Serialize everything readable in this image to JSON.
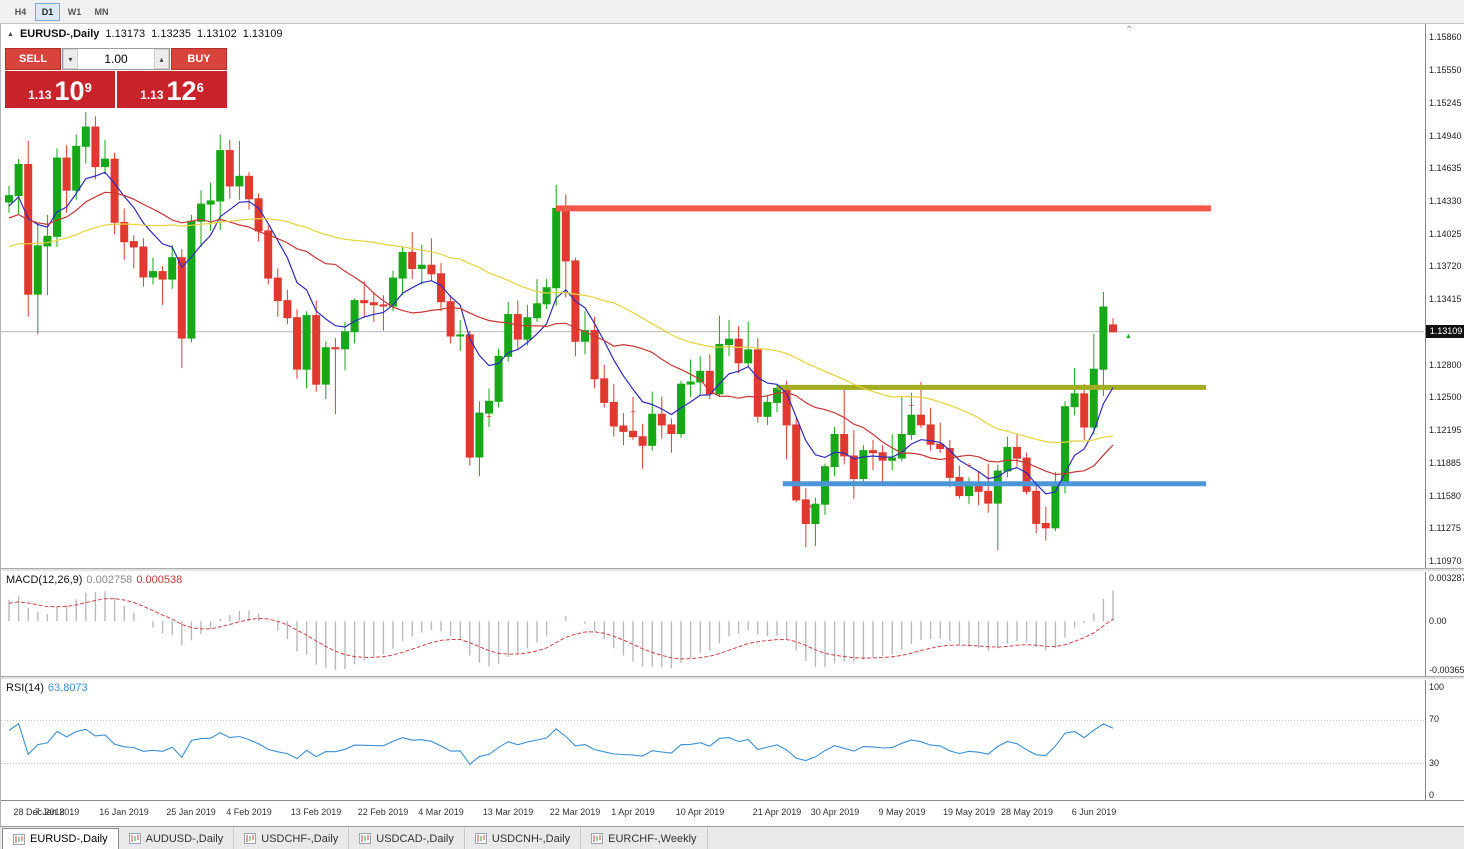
{
  "toolbar": {
    "timeframes": [
      {
        "label": "H4",
        "active": false
      },
      {
        "label": "D1",
        "active": true
      },
      {
        "label": "W1",
        "active": false
      },
      {
        "label": "MN",
        "active": false
      }
    ]
  },
  "icons": {
    "symbol_marker": "▲",
    "scroll_top": "⌃",
    "spin_up": "▴",
    "spin_down": "▾"
  },
  "chart": {
    "header": {
      "symbol": "EURUSD-,Daily",
      "open": "1.13173",
      "high": "1.13235",
      "low": "1.13102",
      "close": "1.13109"
    },
    "trade_panel": {
      "sell_label": "SELL",
      "buy_label": "BUY",
      "volume": "1.00",
      "sell_price": {
        "small": "1.13",
        "big": "10",
        "sup": "9"
      },
      "buy_price": {
        "small": "1.13",
        "big": "12",
        "sup": "6"
      }
    },
    "current_price": "1.13109",
    "current_price_value": 1.13109,
    "price_axis": [
      "1.15860",
      "1.15550",
      "1.15245",
      "1.14940",
      "1.14635",
      "1.14330",
      "1.14025",
      "1.13720",
      "1.13415",
      "1.12800",
      "1.12500",
      "1.12195",
      "1.11885",
      "1.11580",
      "1.11275",
      "1.10970"
    ],
    "up_color": "#17a817",
    "down_color": "#e03a30",
    "levels": [
      {
        "name": "resistance-line-red",
        "price": 1.1426,
        "color": "#f4564a",
        "width": 6,
        "from_index": 57,
        "to_index": 125.2
      },
      {
        "name": "breakout-line-olive",
        "price": 1.1259,
        "color": "#a2ad1f",
        "width": 5,
        "from_index": 80,
        "to_index": 124.7
      },
      {
        "name": "support-line-blue",
        "price": 1.1169,
        "color": "#4c96d8",
        "width": 5,
        "from_index": 80.6,
        "to_index": 124.7
      }
    ],
    "ma": [
      {
        "period": 8,
        "type": "ema",
        "color": "#2c2cbe"
      },
      {
        "period": 16,
        "type": "sma",
        "color": "#c93636"
      },
      {
        "period": 45,
        "type": "sma",
        "color": "#e7d23c"
      }
    ],
    "prehistory_closes": [
      1.133,
      1.1345,
      1.136,
      1.134,
      1.1322,
      1.131,
      1.1335,
      1.135,
      1.1365,
      1.138,
      1.137,
      1.1355,
      1.134,
      1.133,
      1.1345,
      1.136,
      1.1375,
      1.139,
      1.1405,
      1.1395,
      1.138,
      1.1365,
      1.135,
      1.136,
      1.1375,
      1.139,
      1.14,
      1.141,
      1.142,
      1.141,
      1.1395,
      1.138,
      1.137,
      1.1385,
      1.14,
      1.1415,
      1.1425,
      1.1435,
      1.1425,
      1.141,
      1.1395,
      1.1385,
      1.1375,
      1.139,
      1.1405,
      1.142,
      1.1435,
      1.1445,
      1.144,
      1.1435
    ],
    "candles": [
      [
        1.1432,
        1.1447,
        1.1422,
        1.1438
      ],
      [
        1.1438,
        1.1472,
        1.1421,
        1.1467
      ],
      [
        1.1467,
        1.1489,
        1.1325,
        1.1346
      ],
      [
        1.1346,
        1.1412,
        1.1309,
        1.1391
      ],
      [
        1.1391,
        1.142,
        1.1345,
        1.14
      ],
      [
        1.14,
        1.1482,
        1.139,
        1.1473
      ],
      [
        1.1473,
        1.1485,
        1.1422,
        1.1443
      ],
      [
        1.1443,
        1.1495,
        1.1434,
        1.1484
      ],
      [
        1.1484,
        1.1516,
        1.1468,
        1.1502
      ],
      [
        1.1502,
        1.1512,
        1.1453,
        1.1465
      ],
      [
        1.1465,
        1.149,
        1.1458,
        1.1472
      ],
      [
        1.1472,
        1.1478,
        1.1402,
        1.1413
      ],
      [
        1.1413,
        1.1426,
        1.1378,
        1.1395
      ],
      [
        1.1395,
        1.1401,
        1.137,
        1.139
      ],
      [
        1.139,
        1.1398,
        1.1353,
        1.1362
      ],
      [
        1.1362,
        1.138,
        1.1355,
        1.1367
      ],
      [
        1.1367,
        1.1372,
        1.1336,
        1.136
      ],
      [
        1.136,
        1.1392,
        1.1351,
        1.138
      ],
      [
        1.138,
        1.1388,
        1.1277,
        1.1305
      ],
      [
        1.1305,
        1.142,
        1.1301,
        1.1414
      ],
      [
        1.1414,
        1.1443,
        1.139,
        1.143
      ],
      [
        1.143,
        1.145,
        1.1405,
        1.1433
      ],
      [
        1.1433,
        1.1495,
        1.1406,
        1.148
      ],
      [
        1.148,
        1.149,
        1.1435,
        1.1447
      ],
      [
        1.1447,
        1.1489,
        1.1434,
        1.1456
      ],
      [
        1.1456,
        1.146,
        1.1425,
        1.1435
      ],
      [
        1.1435,
        1.144,
        1.1395,
        1.1405
      ],
      [
        1.1405,
        1.141,
        1.1355,
        1.1361
      ],
      [
        1.1361,
        1.137,
        1.1325,
        1.134
      ],
      [
        1.134,
        1.135,
        1.1318,
        1.1324
      ],
      [
        1.1324,
        1.1332,
        1.1267,
        1.1276
      ],
      [
        1.1276,
        1.133,
        1.1258,
        1.1326
      ],
      [
        1.1326,
        1.134,
        1.1255,
        1.1262
      ],
      [
        1.1262,
        1.1302,
        1.1248,
        1.1296
      ],
      [
        1.1296,
        1.1305,
        1.1234,
        1.1295
      ],
      [
        1.1295,
        1.132,
        1.1275,
        1.1311
      ],
      [
        1.1311,
        1.1342,
        1.13,
        1.134
      ],
      [
        1.134,
        1.1358,
        1.1324,
        1.1338
      ],
      [
        1.1338,
        1.1348,
        1.132,
        1.1336
      ],
      [
        1.1336,
        1.1345,
        1.1312,
        1.1335
      ],
      [
        1.1335,
        1.1368,
        1.133,
        1.1361
      ],
      [
        1.1361,
        1.139,
        1.1345,
        1.1385
      ],
      [
        1.1385,
        1.1404,
        1.136,
        1.137
      ],
      [
        1.137,
        1.1392,
        1.1355,
        1.1373
      ],
      [
        1.1373,
        1.1398,
        1.1358,
        1.1365
      ],
      [
        1.1365,
        1.1375,
        1.133,
        1.1339
      ],
      [
        1.1339,
        1.1345,
        1.13,
        1.1307
      ],
      [
        1.1307,
        1.1322,
        1.1293,
        1.1308
      ],
      [
        1.1308,
        1.1312,
        1.1186,
        1.1194
      ],
      [
        1.1194,
        1.1246,
        1.1176,
        1.1235
      ],
      [
        1.1235,
        1.1258,
        1.1222,
        1.1246
      ],
      [
        1.1246,
        1.1295,
        1.124,
        1.1288
      ],
      [
        1.1288,
        1.1339,
        1.1283,
        1.1327
      ],
      [
        1.1327,
        1.134,
        1.1295,
        1.1304
      ],
      [
        1.1304,
        1.1336,
        1.1298,
        1.1324
      ],
      [
        1.1324,
        1.136,
        1.132,
        1.1337
      ],
      [
        1.1337,
        1.136,
        1.1332,
        1.1352
      ],
      [
        1.1352,
        1.1448,
        1.1335,
        1.1426
      ],
      [
        1.1426,
        1.1439,
        1.1343,
        1.1377
      ],
      [
        1.1377,
        1.138,
        1.1288,
        1.1302
      ],
      [
        1.1302,
        1.133,
        1.129,
        1.1312
      ],
      [
        1.1312,
        1.1325,
        1.1258,
        1.1267
      ],
      [
        1.1267,
        1.128,
        1.124,
        1.1245
      ],
      [
        1.1245,
        1.1262,
        1.1213,
        1.1223
      ],
      [
        1.1223,
        1.1235,
        1.1205,
        1.1218
      ],
      [
        1.1218,
        1.125,
        1.121,
        1.1213
      ],
      [
        1.1213,
        1.1225,
        1.1183,
        1.1205
      ],
      [
        1.1205,
        1.1255,
        1.12,
        1.1234
      ],
      [
        1.1234,
        1.125,
        1.1211,
        1.1224
      ],
      [
        1.1224,
        1.123,
        1.1198,
        1.1216
      ],
      [
        1.1216,
        1.1265,
        1.1212,
        1.1262
      ],
      [
        1.1262,
        1.1285,
        1.125,
        1.1264
      ],
      [
        1.1264,
        1.1288,
        1.1252,
        1.1274
      ],
      [
        1.1274,
        1.129,
        1.1248,
        1.1253
      ],
      [
        1.1253,
        1.1326,
        1.125,
        1.1299
      ],
      [
        1.1299,
        1.1322,
        1.1288,
        1.1304
      ],
      [
        1.1304,
        1.1316,
        1.1272,
        1.1282
      ],
      [
        1.1282,
        1.132,
        1.1278,
        1.1294
      ],
      [
        1.1294,
        1.1305,
        1.1226,
        1.1232
      ],
      [
        1.1232,
        1.1252,
        1.1224,
        1.1245
      ],
      [
        1.1245,
        1.1262,
        1.1236,
        1.1258
      ],
      [
        1.1258,
        1.1265,
        1.1192,
        1.1224
      ],
      [
        1.1224,
        1.123,
        1.1152,
        1.1154
      ],
      [
        1.1154,
        1.1165,
        1.111,
        1.1132
      ],
      [
        1.1132,
        1.1156,
        1.1111,
        1.115
      ],
      [
        1.115,
        1.1188,
        1.114,
        1.1185
      ],
      [
        1.1185,
        1.1222,
        1.1176,
        1.1215
      ],
      [
        1.1215,
        1.1258,
        1.1187,
        1.1195
      ],
      [
        1.1195,
        1.1219,
        1.1155,
        1.1174
      ],
      [
        1.1174,
        1.1205,
        1.117,
        1.12
      ],
      [
        1.12,
        1.121,
        1.1182,
        1.1198
      ],
      [
        1.1198,
        1.1205,
        1.1167,
        1.1191
      ],
      [
        1.1191,
        1.1215,
        1.1182,
        1.1193
      ],
      [
        1.1193,
        1.1251,
        1.119,
        1.1215
      ],
      [
        1.1215,
        1.1254,
        1.121,
        1.1233
      ],
      [
        1.1233,
        1.1264,
        1.1221,
        1.1224
      ],
      [
        1.1224,
        1.124,
        1.12,
        1.1206
      ],
      [
        1.1206,
        1.1226,
        1.1198,
        1.1202
      ],
      [
        1.1202,
        1.121,
        1.1166,
        1.1175
      ],
      [
        1.1175,
        1.1186,
        1.1155,
        1.1158
      ],
      [
        1.1158,
        1.1175,
        1.115,
        1.1167
      ],
      [
        1.1167,
        1.118,
        1.1149,
        1.1162
      ],
      [
        1.1162,
        1.1188,
        1.1142,
        1.1151
      ],
      [
        1.1151,
        1.1187,
        1.1107,
        1.1181
      ],
      [
        1.1181,
        1.1213,
        1.1175,
        1.1203
      ],
      [
        1.1203,
        1.1215,
        1.1185,
        1.1193
      ],
      [
        1.1193,
        1.1198,
        1.1159,
        1.1162
      ],
      [
        1.1162,
        1.117,
        1.1123,
        1.1132
      ],
      [
        1.1132,
        1.1148,
        1.1116,
        1.1128
      ],
      [
        1.1128,
        1.118,
        1.1125,
        1.1168
      ],
      [
        1.1168,
        1.1246,
        1.116,
        1.1241
      ],
      [
        1.1241,
        1.1277,
        1.1233,
        1.1253
      ],
      [
        1.1253,
        1.1262,
        1.121,
        1.1222
      ],
      [
        1.1222,
        1.1309,
        1.1215,
        1.1276
      ],
      [
        1.1276,
        1.1348,
        1.1251,
        1.1334
      ],
      [
        1.13173,
        1.13235,
        1.13102,
        1.13109
      ]
    ]
  },
  "markers": [
    {
      "index": 50,
      "price": 1.1232,
      "glyph": "+",
      "color": "#cc2f2f",
      "size": 9
    },
    {
      "index": 65,
      "price": 1.1236,
      "glyph": "+",
      "color": "#cc2f2f",
      "size": 9
    },
    {
      "index": 83.5,
      "price": 1.1146,
      "glyph": "*",
      "color": "#cc2f2f",
      "size": 10
    },
    {
      "index": 94,
      "price": 1.1242,
      "glyph": "+",
      "color": "#cc2f2f",
      "size": 9
    },
    {
      "index": 100,
      "price": 1.1186,
      "glyph": "+",
      "color": "#cc2f2f",
      "size": 9
    },
    {
      "index": 116.6,
      "price": 1.1308,
      "glyph": "▴",
      "color": "#17a817",
      "size": 8
    }
  ],
  "macd": {
    "label": "MACD(12,26,9)",
    "value_main": "0.002758",
    "value_signal": "0.000538",
    "axis": [
      "0.003287",
      "0.00",
      "-0.003659"
    ],
    "fast": 12,
    "slow": 26,
    "signal": 9,
    "hist_color": "#b9b9b9",
    "signal_color": "#d04343"
  },
  "rsi": {
    "label": "RSI(14)",
    "value": "63.8073",
    "period": 14,
    "axis": [
      100,
      70,
      30,
      0
    ],
    "levels": [
      70,
      30
    ],
    "color": "#3c8fd6"
  },
  "time_axis": {
    "labels": [
      {
        "text": "28 Dec 2018",
        "index": 0
      },
      {
        "text": "7 Jan 2019",
        "index": 5
      },
      {
        "text": "16 Jan 2019",
        "index": 12
      },
      {
        "text": "25 Jan 2019",
        "index": 19
      },
      {
        "text": "4 Feb 2019",
        "index": 25
      },
      {
        "text": "13 Feb 2019",
        "index": 32
      },
      {
        "text": "22 Feb 2019",
        "index": 39
      },
      {
        "text": "4 Mar 2019",
        "index": 45
      },
      {
        "text": "13 Mar 2019",
        "index": 52
      },
      {
        "text": "22 Mar 2019",
        "index": 59
      },
      {
        "text": "1 Apr 2019",
        "index": 65
      },
      {
        "text": "10 Apr 2019",
        "index": 72
      },
      {
        "text": "21 Apr 2019",
        "index": 80
      },
      {
        "text": "30 Apr 2019",
        "index": 86
      },
      {
        "text": "9 May 2019",
        "index": 93
      },
      {
        "text": "19 May 2019",
        "index": 100
      },
      {
        "text": "28 May 2019",
        "index": 106
      },
      {
        "text": "6 Jun 2019",
        "index": 113
      }
    ]
  },
  "tabs": [
    {
      "label": "EURUSD-,Daily",
      "active": true
    },
    {
      "label": "AUDUSD-,Daily",
      "active": false
    },
    {
      "label": "USDCHF-,Daily",
      "active": false
    },
    {
      "label": "USDCAD-,Daily",
      "active": false
    },
    {
      "label": "USDCNH-,Daily",
      "active": false
    },
    {
      "label": "EURCHF-,Weekly",
      "active": false
    }
  ]
}
